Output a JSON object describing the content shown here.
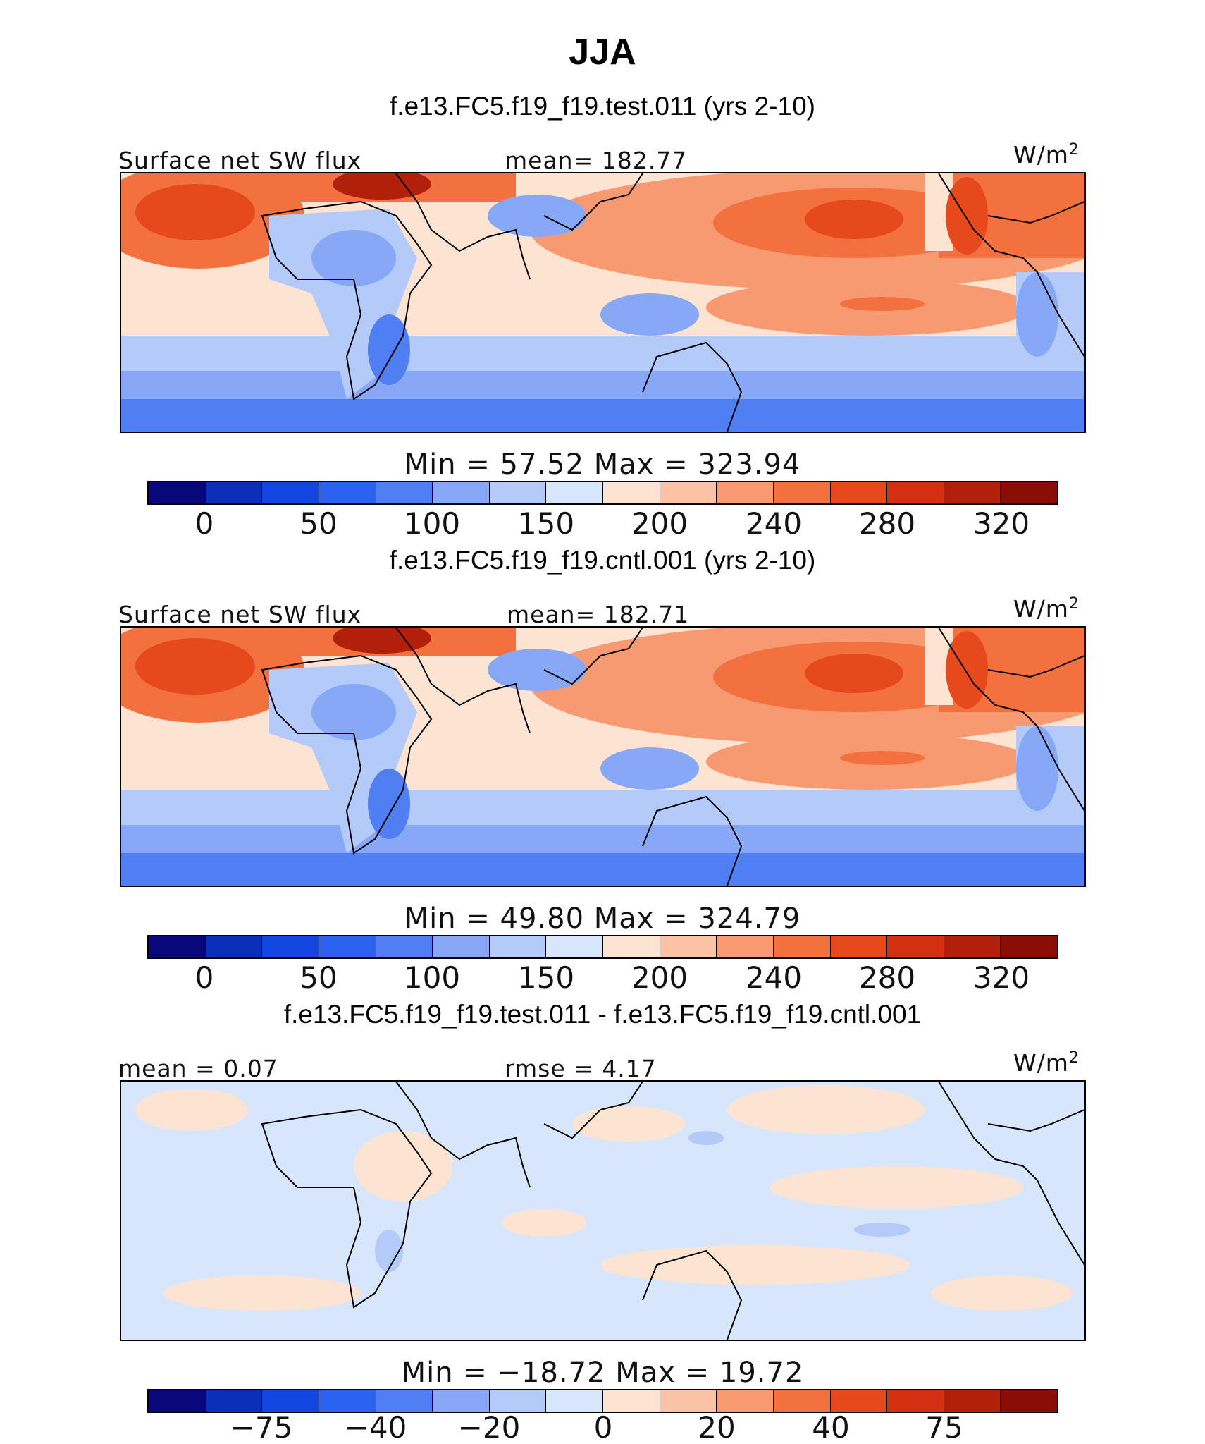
{
  "title": "JJA",
  "panels": [
    {
      "case_title": "f.e13.FC5.f19_f19.test.011 (yrs 2-10)",
      "left_label": "Surface net SW flux",
      "center_label": "mean=  182.77",
      "units": "W/m",
      "units_sup": "2",
      "minmax": "Min  =   57.52  Max  =  323.94",
      "colorbar_ticks": [
        "0",
        "50",
        "100",
        "150",
        "200",
        "240",
        "280",
        "320"
      ]
    },
    {
      "case_title": "f.e13.FC5.f19_f19.cntl.001 (yrs 2-10)",
      "left_label": "Surface net SW flux",
      "center_label": "mean=  182.71",
      "units": "W/m",
      "units_sup": "2",
      "minmax": "Min  =   49.80  Max  =  324.79",
      "colorbar_ticks": [
        "0",
        "50",
        "100",
        "150",
        "200",
        "240",
        "280",
        "320"
      ]
    },
    {
      "case_title": "f.e13.FC5.f19_f19.test.011 - f.e13.FC5.f19_f19.cntl.001",
      "left_label": "mean  =    0.07",
      "center_label": "rmse  =    4.17",
      "units": "W/m",
      "units_sup": "2",
      "minmax": "Min  = −18.72  Max  =   19.72",
      "colorbar_ticks": [
        "−75",
        "−40",
        "−20",
        "0",
        "20",
        "40",
        "75"
      ]
    }
  ],
  "colors": {
    "palette": [
      "#08087a",
      "#0b2fb8",
      "#1146e0",
      "#2b63f0",
      "#4f7ff2",
      "#86a8f6",
      "#b4caf8",
      "#d8e6fb",
      "#fde4d2",
      "#fbc3a6",
      "#f79a72",
      "#f3703f",
      "#e64a1c",
      "#d23010",
      "#b2200b",
      "#8a0e05"
    ],
    "ocean_light": "#d8e6fb",
    "map_border": "#000000"
  }
}
